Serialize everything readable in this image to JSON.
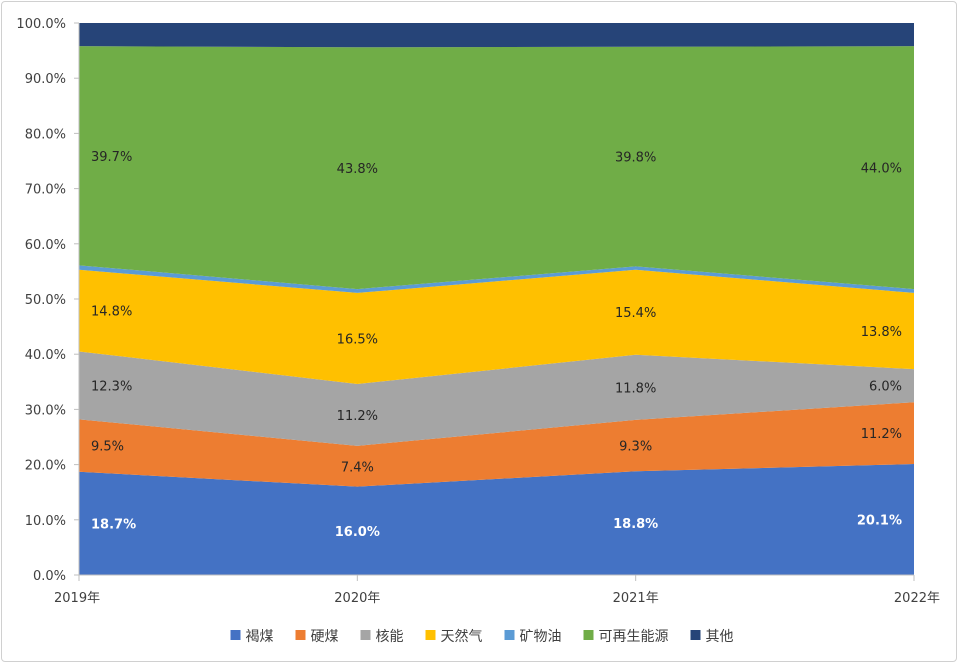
{
  "chart_data": {
    "type": "area",
    "stacked": true,
    "categories": [
      "2019年",
      "2020年",
      "2021年",
      "2022年"
    ],
    "ylim": [
      0,
      100
    ],
    "y_ticks": [
      "0.0%",
      "10.0%",
      "20.0%",
      "30.0%",
      "40.0%",
      "50.0%",
      "60.0%",
      "70.0%",
      "80.0%",
      "90.0%",
      "100.0%"
    ],
    "legend_position": "bottom",
    "grid": false,
    "series": [
      {
        "name": "褐煤",
        "color": "#4472C4",
        "values": [
          18.7,
          16.0,
          18.8,
          20.1
        ],
        "labels": [
          "18.7%",
          "16.0%",
          "18.8%",
          "20.1%"
        ],
        "label_color": "#ffffff"
      },
      {
        "name": "硬煤",
        "color": "#ED7D31",
        "values": [
          9.5,
          7.4,
          9.3,
          11.2
        ],
        "labels": [
          "9.5%",
          "7.4%",
          "9.3%",
          "11.2%"
        ],
        "label_color": "#262626"
      },
      {
        "name": "核能",
        "color": "#A5A5A5",
        "values": [
          12.3,
          11.2,
          11.8,
          6.0
        ],
        "labels": [
          "12.3%",
          "11.2%",
          "11.8%",
          "6.0%"
        ],
        "label_color": "#262626"
      },
      {
        "name": "天然气",
        "color": "#FFC000",
        "values": [
          14.8,
          16.5,
          15.4,
          13.8
        ],
        "labels": [
          "14.8%",
          "16.5%",
          "15.4%",
          "13.8%"
        ],
        "label_color": "#262626"
      },
      {
        "name": "矿物油",
        "color": "#5B9BD5",
        "values": [
          0.8,
          0.7,
          0.6,
          0.7
        ],
        "labels": [],
        "label_color": "#262626"
      },
      {
        "name": "可再生能源",
        "color": "#70AD47",
        "values": [
          39.7,
          43.8,
          39.8,
          44.0
        ],
        "labels": [
          "39.7%",
          "43.8%",
          "39.8%",
          "44.0%"
        ],
        "label_color": "#262626"
      },
      {
        "name": "其他",
        "color": "#264478",
        "values": [
          4.2,
          4.4,
          4.3,
          4.2
        ],
        "labels": [],
        "label_color": "#ffffff"
      }
    ]
  }
}
